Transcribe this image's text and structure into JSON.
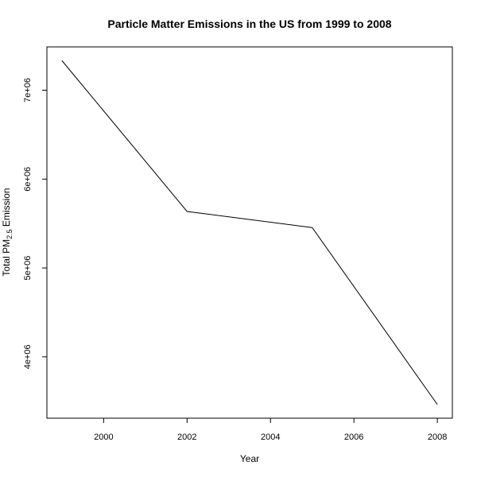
{
  "chart_data": {
    "type": "line",
    "title": "Particle Matter Emissions in the US from 1999 to 2008",
    "xlabel": "Year",
    "ylabel": {
      "prefix": "Total PM",
      "subscript": "2.5",
      "suffix": " Emission"
    },
    "x": [
      1999,
      2002,
      2005,
      2008
    ],
    "series": [
      {
        "values": [
          7332967,
          5635780,
          5454703,
          3464206
        ]
      }
    ],
    "xlim": [
      1998.64,
      2008.36
    ],
    "ylim": [
      3309897,
      7487276
    ],
    "xticks": [
      {
        "value": 2000,
        "label": "2000"
      },
      {
        "value": 2002,
        "label": "2002"
      },
      {
        "value": 2004,
        "label": "2004"
      },
      {
        "value": 2006,
        "label": "2006"
      },
      {
        "value": 2008,
        "label": "2008"
      }
    ],
    "yticks": [
      {
        "value": 4000000,
        "label": "4e+06"
      },
      {
        "value": 5000000,
        "label": "5e+06"
      },
      {
        "value": 6000000,
        "label": "6e+06"
      },
      {
        "value": 7000000,
        "label": "7e+06"
      }
    ],
    "grid": false,
    "line_color": "#000000"
  }
}
